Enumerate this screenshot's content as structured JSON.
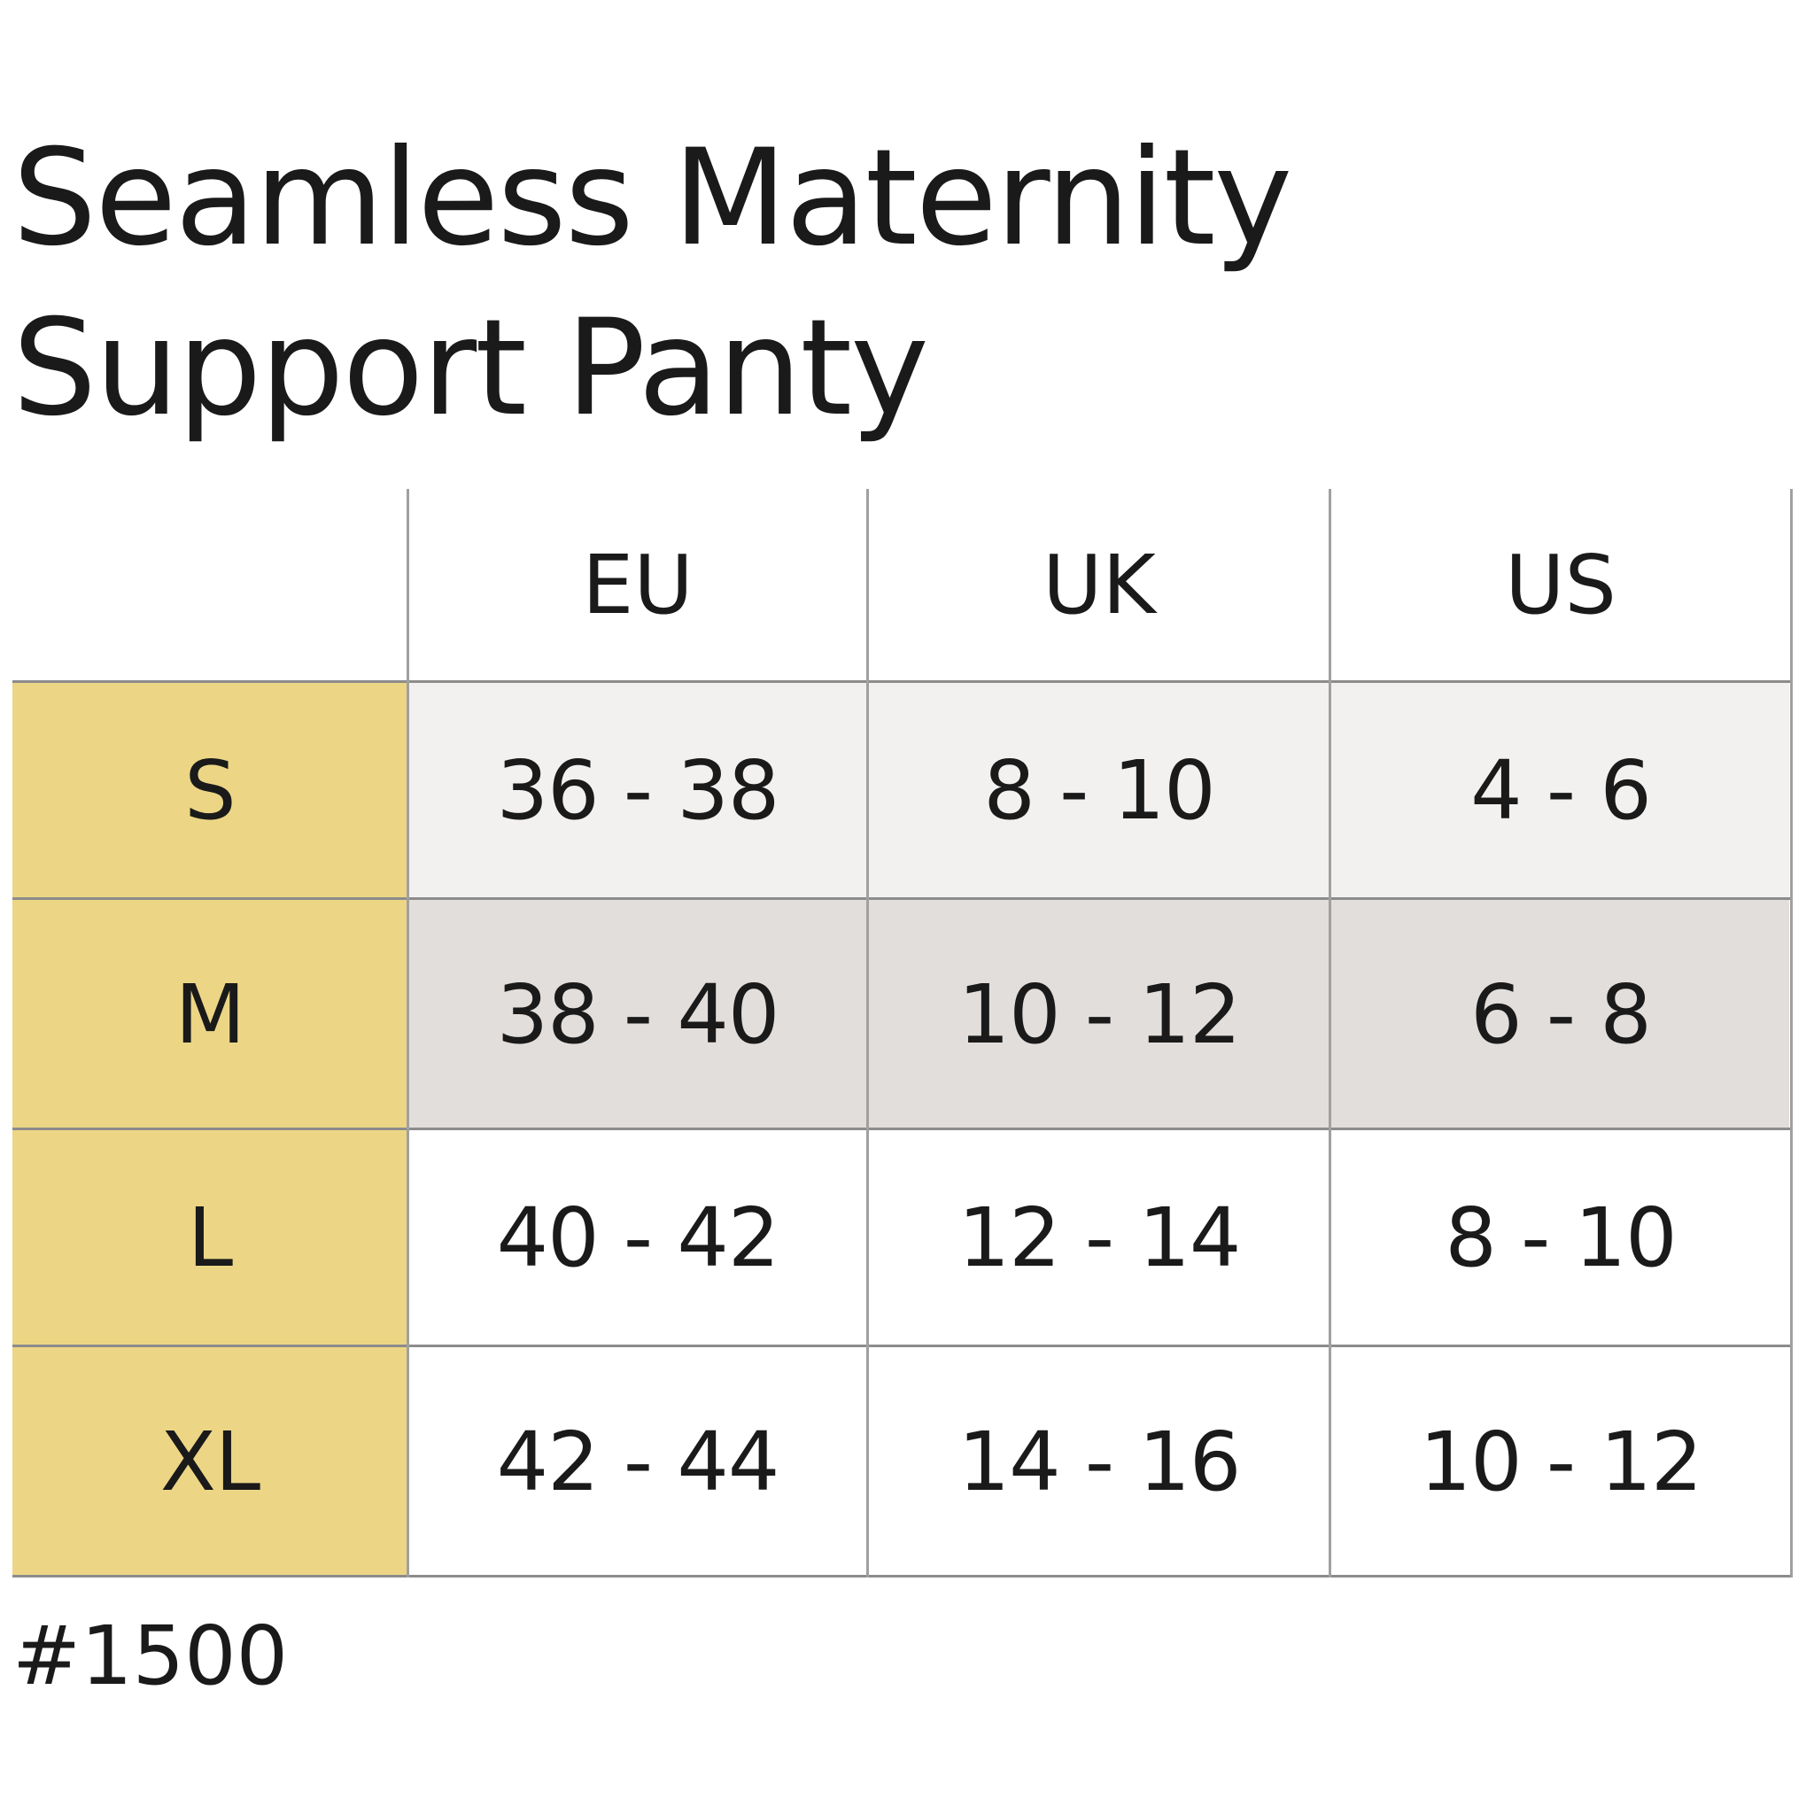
{
  "title": {
    "line1": "Seamless Maternity",
    "line2": "Support Panty"
  },
  "table": {
    "columns": [
      "EU",
      "UK",
      "US"
    ],
    "rows": [
      {
        "size": "S",
        "eu": "36 - 38",
        "uk": "8 - 10",
        "us": "4 - 6"
      },
      {
        "size": "M",
        "eu": "38 - 40",
        "uk": "10 - 12",
        "us": "6 - 8"
      },
      {
        "size": "L",
        "eu": "40 - 42",
        "uk": "12 - 14",
        "us": "8 - 10"
      },
      {
        "size": "XL",
        "eu": "42 - 44",
        "uk": "14 - 16",
        "us": "10 - 12"
      }
    ]
  },
  "product_code": "#1500",
  "colors": {
    "size_column": "#ecd685",
    "row_s": "#f3f1ef",
    "row_m": "#e2dedb",
    "row_l": "#ffffff",
    "row_xl": "#ffffff",
    "grid_line": "#8c8c8c"
  }
}
